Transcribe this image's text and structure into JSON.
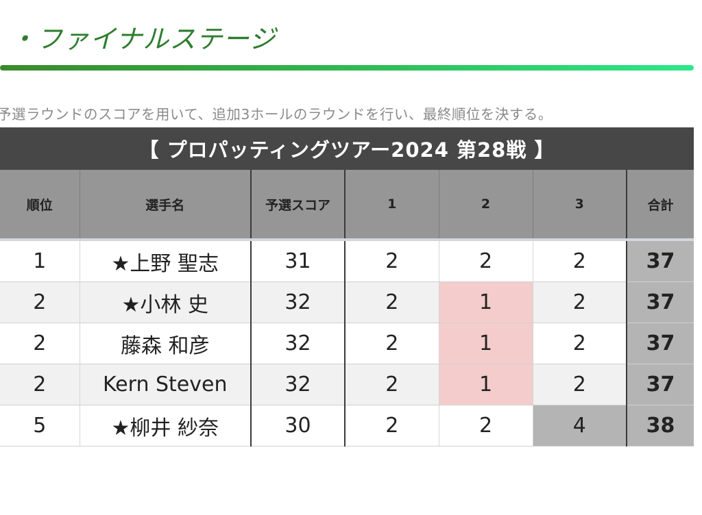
{
  "header": {
    "title": "・ファイナルステージ"
  },
  "description": "予選ラウンドのスコアを用いて、追加3ホールのラウンドを行い、最終順位を決する。",
  "table": {
    "title": "【 プロパッティングツアー2024 第28戦 】",
    "columns": [
      "順位",
      "選手名",
      "予選スコア",
      "1",
      "2",
      "3",
      "合計"
    ],
    "rows": [
      {
        "rank": "1",
        "name": "★上野 聖志",
        "qualifying": "31",
        "h1": "2",
        "h2": "2",
        "h3": "2",
        "total": "37"
      },
      {
        "rank": "2",
        "name": "★小林 史",
        "qualifying": "32",
        "h1": "2",
        "h2": "1",
        "h3": "2",
        "total": "37"
      },
      {
        "rank": "2",
        "name": "藤森 和彦",
        "qualifying": "32",
        "h1": "2",
        "h2": "1",
        "h3": "2",
        "total": "37"
      },
      {
        "rank": "2",
        "name": "Kern Steven",
        "qualifying": "32",
        "h1": "2",
        "h2": "1",
        "h3": "2",
        "total": "37"
      },
      {
        "rank": "5",
        "name": "★柳井 紗奈",
        "qualifying": "30",
        "h1": "2",
        "h2": "2",
        "h3": "4",
        "total": "38"
      }
    ]
  },
  "colors": {
    "title_green": "#2e7d2e",
    "header_dark": "#474747",
    "column_header": "#969696",
    "highlight_pink": "#f4cccc",
    "highlight_gray": "#b4b4b4"
  }
}
